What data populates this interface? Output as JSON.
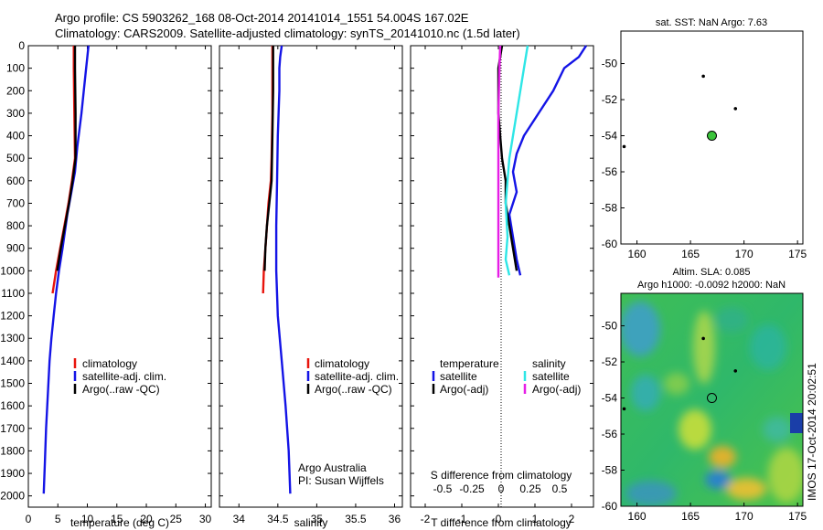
{
  "figure": {
    "title_line1": "Argo profile: CS 5903262_168 08-Oct-2014 20141014_1551 54.004S 167.02E",
    "title_line2": "Climatology: CARS2009. Satellite-adjusted climatology: synTS_20141010.nc (1.5d later)",
    "credit_line1": "Argo Australia",
    "credit_line2": "PI: Susan Wijffels",
    "watermark": "IMOS 17-Oct-2014 20:02:51",
    "colors": {
      "climatology": "#e8140c",
      "satellite": "#1414e6",
      "argo": "#000000",
      "sal_sat": "#2ee6e6",
      "sal_argo": "#e61ee6",
      "sst_fill": "#3bc43b"
    }
  },
  "chart_data": [
    {
      "id": "temperature",
      "type": "line",
      "xlabel": "temperature (deg C)",
      "ylabel": "",
      "xlim": [
        0,
        31
      ],
      "ylim": [
        2050,
        0
      ],
      "x_ticks": [
        0,
        5,
        10,
        15,
        20,
        25,
        30
      ],
      "y_ticks": [
        0,
        100,
        200,
        300,
        400,
        500,
        600,
        700,
        800,
        900,
        1000,
        1100,
        1200,
        1300,
        1400,
        1500,
        1600,
        1700,
        1800,
        1900,
        2000
      ],
      "legend": [
        "climatology",
        "satellite-adj. clim.",
        "Argo(..raw -QC)"
      ],
      "series": [
        {
          "name": "climatology",
          "color": "climatology",
          "points": [
            [
              7.7,
              0
            ],
            [
              7.7,
              100
            ],
            [
              7.8,
              300
            ],
            [
              7.9,
              500
            ],
            [
              7.4,
              600
            ],
            [
              6.8,
              700
            ],
            [
              6.1,
              800
            ],
            [
              5.4,
              900
            ],
            [
              4.7,
              1000
            ],
            [
              4.1,
              1100
            ]
          ]
        },
        {
          "name": "satellite-adj. clim.",
          "color": "satellite",
          "points": [
            [
              10.2,
              0
            ],
            [
              10.0,
              50
            ],
            [
              9.6,
              150
            ],
            [
              9.0,
              300
            ],
            [
              8.3,
              450
            ],
            [
              7.9,
              560
            ],
            [
              7.3,
              650
            ],
            [
              6.6,
              750
            ],
            [
              5.8,
              900
            ],
            [
              5.2,
              1000
            ],
            [
              4.7,
              1100
            ],
            [
              4.3,
              1200
            ],
            [
              3.9,
              1300
            ],
            [
              3.6,
              1400
            ],
            [
              3.3,
              1550
            ],
            [
              3.0,
              1700
            ],
            [
              2.8,
              1850
            ],
            [
              2.6,
              1990
            ]
          ]
        },
        {
          "name": "Argo(..raw -QC)",
          "color": "argo",
          "points": [
            [
              7.9,
              0
            ],
            [
              7.9,
              100
            ],
            [
              8.0,
              300
            ],
            [
              8.0,
              500
            ],
            [
              7.5,
              600
            ],
            [
              6.9,
              700
            ],
            [
              6.2,
              800
            ],
            [
              5.5,
              900
            ],
            [
              4.9,
              1000
            ]
          ]
        }
      ]
    },
    {
      "id": "salinity",
      "type": "line",
      "xlabel": "salinity",
      "ylabel": "",
      "xlim": [
        33.75,
        36.1
      ],
      "ylim": [
        2050,
        0
      ],
      "x_ticks": [
        34,
        34.5,
        35,
        35.5,
        36
      ],
      "legend": [
        "climatology",
        "satellite-adj. clim.",
        "Argo(..raw -QC)"
      ],
      "series": [
        {
          "name": "climatology",
          "color": "climatology",
          "points": [
            [
              34.43,
              0
            ],
            [
              34.43,
              300
            ],
            [
              34.42,
              500
            ],
            [
              34.41,
              600
            ],
            [
              34.38,
              700
            ],
            [
              34.35,
              850
            ],
            [
              34.32,
              1000
            ],
            [
              34.31,
              1100
            ]
          ]
        },
        {
          "name": "satellite-adj. clim.",
          "color": "satellite",
          "points": [
            [
              34.55,
              0
            ],
            [
              34.53,
              50
            ],
            [
              34.52,
              100
            ],
            [
              34.52,
              200
            ],
            [
              34.5,
              400
            ],
            [
              34.49,
              600
            ],
            [
              34.48,
              800
            ],
            [
              34.48,
              1000
            ],
            [
              34.5,
              1200
            ],
            [
              34.55,
              1400
            ],
            [
              34.6,
              1600
            ],
            [
              34.64,
              1800
            ],
            [
              34.66,
              1990
            ]
          ]
        },
        {
          "name": "Argo(..raw -QC)",
          "color": "argo",
          "points": [
            [
              34.44,
              0
            ],
            [
              34.44,
              200
            ],
            [
              34.43,
              400
            ],
            [
              34.42,
              600
            ],
            [
              34.39,
              700
            ],
            [
              34.36,
              800
            ],
            [
              34.34,
              900
            ],
            [
              34.33,
              1000
            ]
          ]
        }
      ]
    },
    {
      "id": "difference",
      "type": "line",
      "xlabel": "T difference from climatology",
      "xlabel_top": "S difference from climatology",
      "xlim": [
        -2.4,
        2.6
      ],
      "ylim": [
        2050,
        0
      ],
      "x_ticks_bottom": [
        -2,
        -1,
        0,
        1,
        2
      ],
      "x_ticks_top": [
        -0.5,
        -0.25,
        0,
        0.25,
        0.5
      ],
      "legend_headers": [
        "temperature",
        "salinity"
      ],
      "legend": [
        "satellite",
        "Argo(-adj)",
        "satellite",
        "Argo(-adj)"
      ],
      "series": [
        {
          "name": "satellite",
          "group": "temperature",
          "color": "satellite",
          "points": [
            [
              2.4,
              0
            ],
            [
              2.2,
              50
            ],
            [
              1.8,
              100
            ],
            [
              1.5,
              200
            ],
            [
              1.1,
              300
            ],
            [
              0.7,
              400
            ],
            [
              0.5,
              480
            ],
            [
              0.4,
              560
            ],
            [
              0.5,
              650
            ],
            [
              0.3,
              750
            ],
            [
              0.4,
              850
            ],
            [
              0.5,
              950
            ],
            [
              0.6,
              1020
            ]
          ]
        },
        {
          "name": "Argo(-adj)",
          "group": "temperature",
          "color": "argo",
          "points": [
            [
              0.1,
              0
            ],
            [
              0.0,
              100
            ],
            [
              0.0,
              300
            ],
            [
              0.1,
              500
            ],
            [
              0.2,
              600
            ],
            [
              0.2,
              700
            ],
            [
              0.3,
              800
            ],
            [
              0.4,
              900
            ],
            [
              0.5,
              1000
            ]
          ]
        },
        {
          "name": "satellite",
          "group": "salinity",
          "color": "sal_sat",
          "points": [
            [
              0.8,
              0
            ],
            [
              0.7,
              100
            ],
            [
              0.6,
              200
            ],
            [
              0.5,
              300
            ],
            [
              0.4,
              400
            ],
            [
              0.3,
              500
            ],
            [
              0.25,
              600
            ],
            [
              0.2,
              700
            ],
            [
              0.25,
              850
            ],
            [
              0.2,
              950
            ],
            [
              0.3,
              1020
            ]
          ]
        },
        {
          "name": "Argo(-adj)",
          "group": "salinity",
          "color": "sal_argo",
          "points": [
            [
              0.05,
              0
            ],
            [
              0.03,
              100
            ],
            [
              0.0,
              300
            ],
            [
              0.0,
              500
            ],
            [
              0.0,
              700
            ],
            [
              0.0,
              900
            ],
            [
              0.0,
              1030
            ]
          ]
        }
      ]
    },
    {
      "id": "sst-map",
      "type": "scatter",
      "title": "sat. SST: NaN Argo: 7.63",
      "xlim": [
        158.5,
        175.5
      ],
      "ylim": [
        -60,
        -48.2
      ],
      "x_ticks": [
        160,
        165,
        170,
        175
      ],
      "y_ticks": [
        -50,
        -52,
        -54,
        -56,
        -58,
        -60
      ],
      "points": [
        [
          166.2,
          -50.7
        ],
        [
          169.2,
          -52.5
        ],
        [
          158.8,
          -54.6
        ],
        [
          167.0,
          -54.0
        ]
      ],
      "argo_position": [
        167.0,
        -54.0
      ]
    },
    {
      "id": "sla-map",
      "type": "heatmap",
      "title_line1": "Altim. SLA: 0.085",
      "title_line2": "Argo h1000: -0.0092 h2000: NaN",
      "xlim": [
        158.5,
        175.5
      ],
      "ylim": [
        -60,
        -48.2
      ],
      "x_ticks": [
        160,
        165,
        170,
        175
      ],
      "y_ticks": [
        -50,
        -52,
        -54,
        -56,
        -58,
        -60
      ],
      "argo_position": [
        167.0,
        -54.0
      ]
    }
  ]
}
